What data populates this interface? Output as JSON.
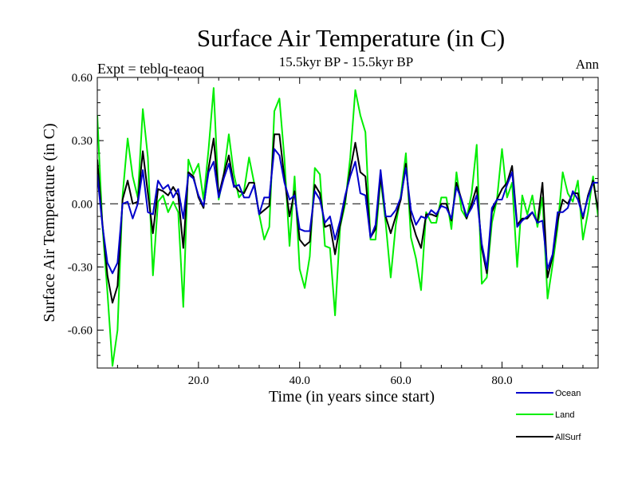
{
  "chart_data": {
    "type": "line",
    "title": "Surface Air Temperature (in C)",
    "subtitle": "15.5kyr BP - 15.5kyr BP",
    "expt_label": "Expt = teblq-teaoq",
    "period_label": "Ann",
    "xlabel": "Time (in years since start)",
    "ylabel": "Surface Air Temperature (in C)",
    "xlim": [
      0,
      99
    ],
    "ylim": [
      -0.78,
      0.6
    ],
    "xticks": [
      20,
      40,
      60,
      80
    ],
    "xtick_labels": [
      "20.0",
      "40.0",
      "60.0",
      "80.0"
    ],
    "yticks": [
      0.6,
      0.3,
      0.0,
      -0.3,
      -0.6
    ],
    "ytick_labels": [
      "0.60",
      "0.30",
      "0.00",
      "-0.30",
      "-0.60"
    ],
    "zero_line": 0.0,
    "legend_position": "bottom-right",
    "series": [
      {
        "name": "Ocean",
        "color": "#0000cc",
        "values": [
          0.14,
          -0.1,
          -0.28,
          -0.33,
          -0.28,
          0.0,
          0.01,
          -0.07,
          0.0,
          0.16,
          -0.04,
          -0.05,
          0.11,
          0.07,
          0.09,
          0.03,
          0.07,
          -0.07,
          0.14,
          0.12,
          0.04,
          -0.01,
          0.15,
          0.2,
          0.03,
          0.12,
          0.19,
          0.08,
          0.09,
          0.03,
          0.03,
          0.09,
          -0.05,
          0.03,
          0.03,
          0.26,
          0.23,
          0.1,
          0.02,
          0.04,
          -0.12,
          -0.13,
          -0.13,
          0.06,
          0.02,
          -0.09,
          -0.06,
          -0.17,
          -0.08,
          0.04,
          0.13,
          0.2,
          0.05,
          0.04,
          -0.16,
          -0.1,
          0.16,
          -0.06,
          -0.06,
          -0.03,
          0.03,
          0.17,
          -0.03,
          -0.1,
          -0.06,
          -0.07,
          -0.03,
          -0.05,
          -0.01,
          -0.02,
          -0.07,
          0.08,
          0.02,
          -0.06,
          -0.02,
          0.04,
          -0.19,
          -0.31,
          -0.02,
          0.02,
          0.02,
          0.09,
          0.15,
          -0.11,
          -0.08,
          -0.06,
          -0.04,
          -0.09,
          -0.08,
          -0.31,
          -0.24,
          -0.04,
          -0.04,
          -0.02,
          0.06,
          0.02,
          -0.06,
          0.03,
          0.1,
          0.1
        ]
      },
      {
        "name": "Land",
        "color": "#00ee00",
        "values": [
          0.42,
          -0.1,
          -0.42,
          -0.77,
          -0.6,
          0.04,
          0.31,
          0.13,
          0.03,
          0.45,
          0.22,
          -0.34,
          0.01,
          0.04,
          -0.04,
          0.01,
          -0.04,
          -0.49,
          0.21,
          0.14,
          0.19,
          0.02,
          0.26,
          0.55,
          0.02,
          0.14,
          0.33,
          0.14,
          0.03,
          0.06,
          0.22,
          0.1,
          -0.05,
          -0.17,
          -0.11,
          0.44,
          0.5,
          0.21,
          -0.2,
          0.13,
          -0.31,
          -0.4,
          -0.25,
          0.17,
          0.14,
          -0.2,
          -0.21,
          -0.53,
          -0.11,
          0.0,
          0.22,
          0.54,
          0.42,
          0.34,
          -0.17,
          -0.17,
          0.12,
          -0.09,
          -0.35,
          -0.1,
          0.04,
          0.24,
          -0.16,
          -0.26,
          -0.41,
          -0.04,
          -0.09,
          -0.09,
          0.03,
          0.03,
          -0.12,
          0.15,
          -0.03,
          -0.07,
          0.05,
          0.28,
          -0.38,
          -0.35,
          -0.09,
          0.02,
          0.26,
          0.03,
          0.1,
          -0.3,
          0.04,
          -0.05,
          0.04,
          -0.11,
          0.03,
          -0.45,
          -0.29,
          -0.11,
          0.15,
          0.05,
          0.01,
          0.11,
          -0.17,
          -0.04,
          0.13,
          -0.06
        ]
      },
      {
        "name": "AllSurf",
        "color": "#000000",
        "values": [
          0.21,
          -0.09,
          -0.34,
          -0.47,
          -0.39,
          0.02,
          0.11,
          0.0,
          0.01,
          0.25,
          0.05,
          -0.14,
          0.07,
          0.06,
          0.04,
          0.08,
          0.04,
          -0.21,
          0.15,
          0.13,
          0.03,
          -0.02,
          0.17,
          0.31,
          0.04,
          0.14,
          0.23,
          0.09,
          0.06,
          0.05,
          0.1,
          0.1,
          -0.05,
          -0.03,
          -0.01,
          0.33,
          0.33,
          0.12,
          -0.06,
          0.06,
          -0.17,
          -0.2,
          -0.18,
          0.09,
          0.05,
          -0.11,
          -0.1,
          -0.24,
          -0.1,
          0.02,
          0.16,
          0.29,
          0.15,
          0.13,
          -0.16,
          -0.12,
          0.13,
          -0.06,
          -0.14,
          -0.06,
          0.02,
          0.19,
          -0.07,
          -0.15,
          -0.21,
          -0.05,
          -0.05,
          -0.06,
          0.0,
          0.0,
          -0.08,
          0.1,
          0.02,
          -0.07,
          0.0,
          0.08,
          -0.21,
          -0.33,
          -0.04,
          0.02,
          0.07,
          0.1,
          0.18,
          -0.1,
          -0.07,
          -0.07,
          -0.04,
          -0.09,
          0.1,
          -0.35,
          -0.25,
          -0.08,
          0.02,
          0.0,
          0.05,
          0.05,
          -0.07,
          0.04,
          0.11,
          -0.03
        ]
      }
    ]
  }
}
